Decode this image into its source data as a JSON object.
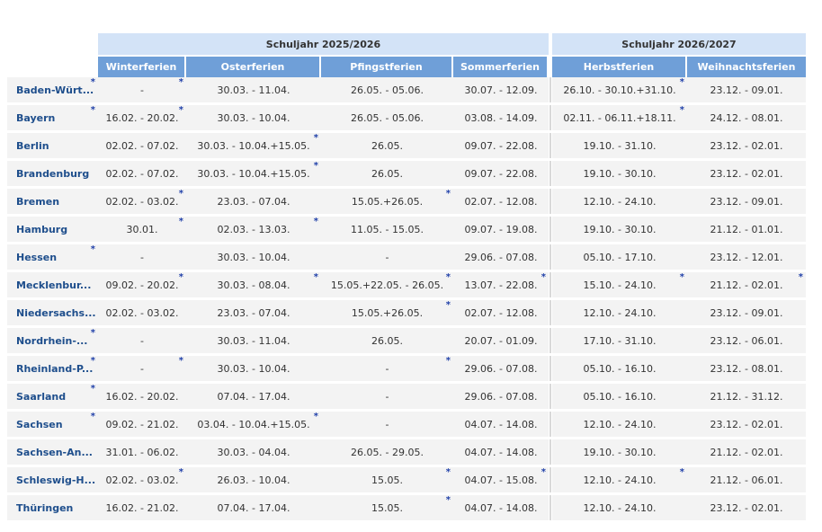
{
  "years": {
    "y1": "Schuljahr 2025/2026",
    "y2": "Schuljahr 2026/2027"
  },
  "columns": [
    "Winterferien",
    "Osterferien",
    "Pfingstferien",
    "Sommerferien",
    "Herbstferien",
    "Weihnachtsferien"
  ],
  "rows": [
    {
      "state": "Baden-Würt...",
      "star_state": true,
      "v": [
        "-",
        "30.03. - 11.04.",
        "26.05. - 05.06.",
        "30.07. - 12.09.",
        "26.10. - 30.10.+31.10.",
        "23.12. - 09.01."
      ],
      "s": [
        true,
        false,
        false,
        false,
        true,
        false
      ]
    },
    {
      "state": "Bayern",
      "star_state": true,
      "v": [
        "16.02. - 20.02.",
        "30.03. - 10.04.",
        "26.05. - 05.06.",
        "03.08. - 14.09.",
        "02.11. - 06.11.+18.11.",
        "24.12. - 08.01."
      ],
      "s": [
        true,
        false,
        false,
        false,
        true,
        false
      ]
    },
    {
      "state": "Berlin",
      "star_state": false,
      "v": [
        "02.02. - 07.02.",
        "30.03. - 10.04.+15.05.",
        "26.05.",
        "09.07. - 22.08.",
        "19.10. - 31.10.",
        "23.12. - 02.01."
      ],
      "s": [
        false,
        true,
        false,
        false,
        false,
        false
      ]
    },
    {
      "state": "Brandenburg",
      "star_state": false,
      "v": [
        "02.02. - 07.02.",
        "30.03. - 10.04.+15.05.",
        "26.05.",
        "09.07. - 22.08.",
        "19.10. - 30.10.",
        "23.12. - 02.01."
      ],
      "s": [
        false,
        true,
        false,
        false,
        false,
        false
      ]
    },
    {
      "state": "Bremen",
      "star_state": false,
      "v": [
        "02.02. - 03.02.",
        "23.03. - 07.04.",
        "15.05.+26.05.",
        "02.07. - 12.08.",
        "12.10. - 24.10.",
        "23.12. - 09.01."
      ],
      "s": [
        true,
        false,
        true,
        false,
        false,
        false
      ]
    },
    {
      "state": "Hamburg",
      "star_state": false,
      "v": [
        "30.01.",
        "02.03. - 13.03.",
        "11.05. - 15.05.",
        "09.07. - 19.08.",
        "19.10. - 30.10.",
        "21.12. - 01.01."
      ],
      "s": [
        true,
        true,
        false,
        false,
        false,
        false
      ]
    },
    {
      "state": "Hessen",
      "star_state": true,
      "v": [
        "-",
        "30.03. - 10.04.",
        "-",
        "29.06. - 07.08.",
        "05.10. - 17.10.",
        "23.12. - 12.01."
      ],
      "s": [
        false,
        false,
        false,
        false,
        false,
        false
      ]
    },
    {
      "state": "Mecklenbur...",
      "star_state": false,
      "v": [
        "09.02. - 20.02.",
        "30.03. - 08.04.",
        "15.05.+22.05. - 26.05.",
        "13.07. - 22.08.",
        "15.10. - 24.10.",
        "21.12. - 02.01."
      ],
      "s": [
        true,
        true,
        true,
        true,
        true,
        true
      ]
    },
    {
      "state": "Niedersachs...",
      "star_state": false,
      "v": [
        "02.02. - 03.02.",
        "23.03. - 07.04.",
        "15.05.+26.05.",
        "02.07. - 12.08.",
        "12.10. - 24.10.",
        "23.12. - 09.01."
      ],
      "s": [
        false,
        false,
        true,
        false,
        false,
        false
      ]
    },
    {
      "state": "Nordrhein-...",
      "star_state": true,
      "v": [
        "-",
        "30.03. - 11.04.",
        "26.05.",
        "20.07. - 01.09.",
        "17.10. - 31.10.",
        "23.12. - 06.01."
      ],
      "s": [
        false,
        false,
        false,
        false,
        false,
        false
      ]
    },
    {
      "state": "Rheinland-P...",
      "star_state": true,
      "v": [
        "-",
        "30.03. - 10.04.",
        "-",
        "29.06. - 07.08.",
        "05.10. - 16.10.",
        "23.12. - 08.01."
      ],
      "s": [
        true,
        false,
        true,
        false,
        false,
        false
      ]
    },
    {
      "state": "Saarland",
      "star_state": true,
      "v": [
        "16.02. - 20.02.",
        "07.04. - 17.04.",
        "-",
        "29.06. - 07.08.",
        "05.10. - 16.10.",
        "21.12. - 31.12."
      ],
      "s": [
        false,
        false,
        false,
        false,
        false,
        false
      ]
    },
    {
      "state": "Sachsen",
      "star_state": true,
      "v": [
        "09.02. - 21.02.",
        "03.04. - 10.04.+15.05.",
        "-",
        "04.07. - 14.08.",
        "12.10. - 24.10.",
        "23.12. - 02.01."
      ],
      "s": [
        false,
        true,
        false,
        false,
        false,
        false
      ]
    },
    {
      "state": "Sachsen-An...",
      "star_state": false,
      "v": [
        "31.01. - 06.02.",
        "30.03. - 04.04.",
        "26.05. - 29.05.",
        "04.07. - 14.08.",
        "19.10. - 30.10.",
        "21.12. - 02.01."
      ],
      "s": [
        false,
        false,
        false,
        false,
        false,
        false
      ]
    },
    {
      "state": "Schleswig-H...",
      "star_state": false,
      "v": [
        "02.02. - 03.02.",
        "26.03. - 10.04.",
        "15.05.",
        "04.07. - 15.08.",
        "12.10. - 24.10.",
        "21.12. - 06.01."
      ],
      "s": [
        true,
        false,
        true,
        true,
        true,
        false
      ]
    },
    {
      "state": "Thüringen",
      "star_state": false,
      "v": [
        "16.02. - 21.02.",
        "07.04. - 17.04.",
        "15.05.",
        "04.07. - 14.08.",
        "12.10. - 24.10.",
        "23.12. - 02.01."
      ],
      "s": [
        false,
        false,
        true,
        false,
        false,
        false
      ]
    }
  ],
  "star_symbol": "*",
  "colors": {
    "header_dark": "#6f9fd8",
    "header_light": "#d3e3f7",
    "state_text": "#1e4e8c",
    "star": "#1f3fa8",
    "row_bg": "#f3f3f3"
  }
}
